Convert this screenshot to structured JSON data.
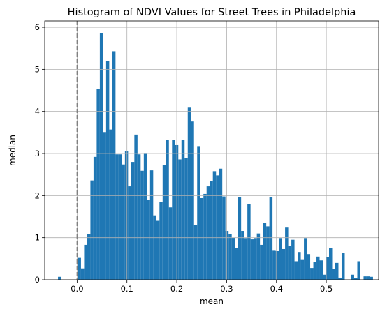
{
  "chart_data": {
    "type": "bar",
    "title": "Histogram of NDVI Values for Street Trees in Philadelphia",
    "xlabel": "mean",
    "ylabel": "median",
    "xlim": [
      -0.065,
      0.605
    ],
    "ylim": [
      0,
      6.15
    ],
    "xticks": [
      0.0,
      0.1,
      0.2,
      0.3,
      0.4,
      0.5
    ],
    "xtick_labels": [
      "0.0",
      "0.1",
      "0.2",
      "0.3",
      "0.4",
      "0.5"
    ],
    "yticks": [
      0,
      1,
      2,
      3,
      4,
      5,
      6
    ],
    "ytick_labels": [
      "0",
      "1",
      "2",
      "3",
      "4",
      "5",
      "6"
    ],
    "grid": true,
    "bar_color": "#1f77b4",
    "reference_line": {
      "x": 0.0,
      "style": "dashed",
      "color": "#808080"
    },
    "bin_width": 0.0063,
    "bins_start": [
      -0.0383,
      0.0015,
      0.0078,
      0.0141,
      0.0204,
      0.0267,
      0.033,
      0.0393,
      0.0456,
      0.0519,
      0.0582,
      0.0645,
      0.0708,
      0.0771,
      0.0834,
      0.0897,
      0.096,
      0.1023,
      0.1086,
      0.1149,
      0.1212,
      0.1275,
      0.1338,
      0.1401,
      0.1464,
      0.1527,
      0.159,
      0.1653,
      0.1716,
      0.1779,
      0.1842,
      0.1905,
      0.1968,
      0.2031,
      0.2094,
      0.2157,
      0.222,
      0.2283,
      0.2346,
      0.2409,
      0.2472,
      0.2535,
      0.2598,
      0.2661,
      0.2724,
      0.2787,
      0.285,
      0.2913,
      0.2976,
      0.3039,
      0.3102,
      0.3165,
      0.3228,
      0.3291,
      0.3354,
      0.3417,
      0.348,
      0.3543,
      0.3606,
      0.3669,
      0.3732,
      0.3795,
      0.3858,
      0.3921,
      0.3984,
      0.4047,
      0.411,
      0.4173,
      0.4236,
      0.4299,
      0.4362,
      0.4425,
      0.4488,
      0.4551,
      0.4614,
      0.4677,
      0.474,
      0.4803,
      0.4866,
      0.4929,
      0.4992,
      0.5055,
      0.5118,
      0.5181,
      0.5244,
      0.5307,
      0.537,
      0.5433,
      0.5496,
      0.5559,
      0.5622,
      0.5685,
      0.5748,
      0.5811,
      0.5874
    ],
    "values": [
      0.07,
      0.52,
      0.27,
      0.83,
      1.08,
      2.36,
      2.92,
      4.53,
      5.86,
      3.51,
      5.19,
      3.57,
      5.43,
      2.98,
      2.98,
      2.74,
      3.06,
      2.22,
      2.8,
      3.45,
      2.98,
      2.59,
      2.99,
      1.9,
      2.6,
      1.53,
      1.4,
      1.85,
      2.73,
      3.32,
      1.72,
      3.32,
      3.2,
      2.86,
      3.33,
      2.89,
      4.09,
      3.76,
      1.3,
      3.16,
      1.94,
      2.04,
      2.22,
      2.34,
      2.58,
      2.48,
      2.64,
      1.98,
      1.16,
      1.09,
      1.0,
      0.76,
      1.96,
      1.16,
      0.99,
      1.8,
      0.96,
      0.99,
      1.1,
      0.83,
      1.35,
      1.27,
      1.97,
      0.69,
      0.68,
      0.99,
      0.73,
      1.24,
      0.8,
      0.95,
      0.44,
      0.66,
      0.47,
      0.99,
      0.61,
      0.28,
      0.42,
      0.55,
      0.46,
      0.12,
      0.54,
      0.75,
      0.26,
      0.4,
      0.05,
      0.64,
      0.0,
      0.0,
      0.12,
      0.04,
      0.44,
      0.0,
      0.08,
      0.08,
      0.07
    ]
  }
}
